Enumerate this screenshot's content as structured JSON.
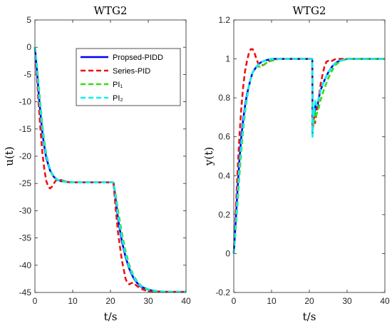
{
  "chart_data": [
    {
      "type": "line",
      "title": "WTG2",
      "xlabel": "t/s",
      "ylabel": "u(t)",
      "xlim": [
        0,
        40
      ],
      "ylim": [
        -45,
        5
      ],
      "xticks": [
        "0",
        "10",
        "20",
        "30",
        "40"
      ],
      "yticks": [
        "5",
        "0",
        "-5",
        "-10",
        "-15",
        "-20",
        "-25",
        "-30",
        "-35",
        "-40",
        "-45"
      ],
      "grid": false,
      "legend": "top-right",
      "series": [
        {
          "name": "Propsed-PIDD",
          "color": "#0000ee",
          "dash": "solid",
          "x": [
            0,
            0.5,
            1,
            1.5,
            2,
            2.5,
            3,
            4,
            5,
            6,
            7,
            8,
            10,
            15,
            20,
            20.8,
            21.5,
            22,
            23,
            24,
            25,
            26,
            27,
            28,
            30,
            32,
            35,
            40
          ],
          "y": [
            0,
            -4,
            -8.5,
            -12.5,
            -15.8,
            -18.3,
            -20.3,
            -22.6,
            -23.8,
            -24.3,
            -24.6,
            -24.7,
            -24.8,
            -24.8,
            -24.8,
            -24.8,
            -28.5,
            -31.5,
            -35.5,
            -38.5,
            -40.7,
            -42.2,
            -43.2,
            -43.9,
            -44.5,
            -44.8,
            -44.9,
            -44.9
          ]
        },
        {
          "name": "Series-PID",
          "color": "#ee1111",
          "dash": "dashed",
          "x": [
            0,
            0.5,
            1,
            1.5,
            2,
            2.5,
            3,
            3.5,
            4,
            4.5,
            5,
            5.5,
            6,
            7,
            8,
            9,
            10,
            12,
            15,
            20,
            20.8,
            21.3,
            22,
            23,
            24,
            24.5,
            25,
            25.5,
            26,
            27,
            28,
            30,
            35,
            40
          ],
          "y": [
            0,
            -5,
            -10.5,
            -15.5,
            -19.5,
            -22.5,
            -24.5,
            -25.6,
            -25.9,
            -25.6,
            -25,
            -24.5,
            -24.3,
            -24.4,
            -24.6,
            -24.75,
            -24.8,
            -24.8,
            -24.8,
            -24.8,
            -24.8,
            -29,
            -34,
            -39,
            -42.5,
            -43.3,
            -43.5,
            -43.3,
            -43.2,
            -43.8,
            -44.3,
            -44.8,
            -44.9,
            -44.9
          ]
        },
        {
          "name": "PI₁",
          "color": "#33dd11",
          "dash": "dashed",
          "x": [
            0,
            0.5,
            1,
            1.5,
            2,
            2.5,
            3,
            4,
            5,
            6,
            7,
            8,
            9,
            10,
            12,
            15,
            20,
            20.8,
            21.5,
            22,
            23,
            24,
            25,
            26,
            27,
            28,
            29,
            30,
            32,
            35,
            40
          ],
          "y": [
            0,
            -3,
            -7,
            -11,
            -14.5,
            -17.3,
            -19.6,
            -22.5,
            -23.9,
            -24.4,
            -24.5,
            -24.6,
            -24.7,
            -24.75,
            -24.8,
            -24.8,
            -24.8,
            -24.8,
            -27.5,
            -30,
            -34,
            -37.5,
            -40,
            -41.8,
            -42.9,
            -43.7,
            -44.2,
            -44.5,
            -44.8,
            -44.9,
            -44.9
          ]
        },
        {
          "name": "PI₂",
          "color": "#11eeee",
          "dash": "dashed",
          "x": [
            0,
            0.5,
            1,
            1.5,
            2,
            2.5,
            3,
            4,
            5,
            6,
            7,
            8,
            10,
            15,
            20,
            20.8,
            21.5,
            22,
            23,
            24,
            25,
            26,
            27,
            28,
            30,
            32,
            35,
            40
          ],
          "y": [
            0,
            -3.5,
            -8,
            -12,
            -15.3,
            -18,
            -20,
            -22.4,
            -23.7,
            -24.3,
            -24.6,
            -24.7,
            -24.8,
            -24.8,
            -24.8,
            -24.8,
            -28,
            -31,
            -35,
            -38.2,
            -40.5,
            -42,
            -43.1,
            -43.8,
            -44.4,
            -44.7,
            -44.9,
            -44.9
          ]
        }
      ]
    },
    {
      "type": "line",
      "title": "WTG2",
      "xlabel": "t/s",
      "ylabel": "y(t)",
      "xlim": [
        0,
        40
      ],
      "ylim": [
        -0.2,
        1.2
      ],
      "xticks": [
        "0",
        "10",
        "20",
        "30",
        "40"
      ],
      "yticks": [
        "1.2",
        "1",
        "0.8",
        "0.6",
        "0.4",
        "0.2",
        "0",
        "-0.2"
      ],
      "grid": false,
      "series": [
        {
          "name": "Propsed-PIDD",
          "color": "#0000ee",
          "dash": "solid",
          "x": [
            0,
            0.5,
            1,
            1.5,
            2,
            2.5,
            3,
            3.5,
            4,
            4.5,
            5,
            6,
            7,
            8,
            9,
            10,
            12,
            15,
            20,
            20.8,
            20.85,
            21.1,
            21.3,
            21.6,
            22,
            22.5,
            23,
            24,
            25,
            26,
            27,
            28,
            30,
            35,
            40
          ],
          "y": [
            0,
            0.16,
            0.33,
            0.48,
            0.6,
            0.69,
            0.76,
            0.82,
            0.86,
            0.9,
            0.93,
            0.96,
            0.98,
            0.99,
            0.995,
            1,
            1,
            1,
            1,
            1,
            0.62,
            0.73,
            0.7,
            0.76,
            0.74,
            0.8,
            0.84,
            0.89,
            0.93,
            0.96,
            0.98,
            0.99,
            1,
            1,
            1
          ]
        },
        {
          "name": "Series-PID",
          "color": "#ee1111",
          "dash": "dashed",
          "x": [
            0,
            0.5,
            1,
            1.5,
            2,
            2.5,
            3,
            3.5,
            4,
            4.5,
            5,
            5.5,
            6,
            6.5,
            7,
            8,
            9,
            10,
            12,
            15,
            20,
            20.8,
            20.85,
            21.2,
            21.5,
            22,
            22.5,
            23,
            23.5,
            24,
            24.5,
            25,
            25.5,
            26,
            27,
            30,
            35,
            40
          ],
          "y": [
            0,
            0.2,
            0.42,
            0.6,
            0.75,
            0.86,
            0.94,
            0.99,
            1.03,
            1.05,
            1.05,
            1.03,
            1.0,
            0.975,
            0.965,
            0.97,
            0.985,
            0.995,
            1,
            1,
            1,
            1,
            0.63,
            0.7,
            0.67,
            0.73,
            0.8,
            0.87,
            0.92,
            0.96,
            0.985,
            0.99,
            0.985,
            0.99,
            1,
            1,
            1,
            1
          ]
        },
        {
          "name": "PI₁",
          "color": "#33dd11",
          "dash": "dashed",
          "x": [
            0,
            0.5,
            1,
            1.5,
            2,
            2.5,
            3,
            3.5,
            4,
            4.5,
            5,
            5.5,
            6,
            7,
            8,
            9,
            10,
            12,
            15,
            20,
            20.8,
            20.85,
            21.1,
            21.4,
            21.7,
            22,
            22.5,
            23,
            24,
            25,
            26,
            27,
            28,
            29,
            30,
            35,
            40
          ],
          "y": [
            0,
            0.12,
            0.26,
            0.4,
            0.53,
            0.64,
            0.73,
            0.8,
            0.86,
            0.9,
            0.93,
            0.95,
            0.96,
            0.96,
            0.97,
            0.985,
            0.99,
            1,
            1,
            1,
            1,
            0.64,
            0.66,
            0.72,
            0.7,
            0.72,
            0.75,
            0.79,
            0.85,
            0.9,
            0.94,
            0.97,
            0.985,
            0.995,
            1,
            1,
            1
          ]
        },
        {
          "name": "PI₂",
          "color": "#11eeee",
          "dash": "dashed",
          "x": [
            0,
            0.5,
            1,
            1.5,
            2,
            2.5,
            3,
            3.5,
            4,
            4.5,
            5,
            6,
            7,
            8,
            9,
            10,
            12,
            15,
            20,
            20.8,
            20.85,
            21.1,
            21.3,
            21.6,
            22,
            22.5,
            23,
            24,
            25,
            26,
            27,
            28,
            30,
            35,
            40
          ],
          "y": [
            0,
            0.14,
            0.3,
            0.45,
            0.57,
            0.67,
            0.75,
            0.81,
            0.86,
            0.9,
            0.93,
            0.96,
            0.98,
            0.99,
            0.995,
            1,
            1,
            1,
            1,
            1,
            0.6,
            0.75,
            0.72,
            0.79,
            0.76,
            0.8,
            0.84,
            0.89,
            0.93,
            0.96,
            0.98,
            0.99,
            1,
            1,
            1
          ]
        }
      ]
    }
  ]
}
